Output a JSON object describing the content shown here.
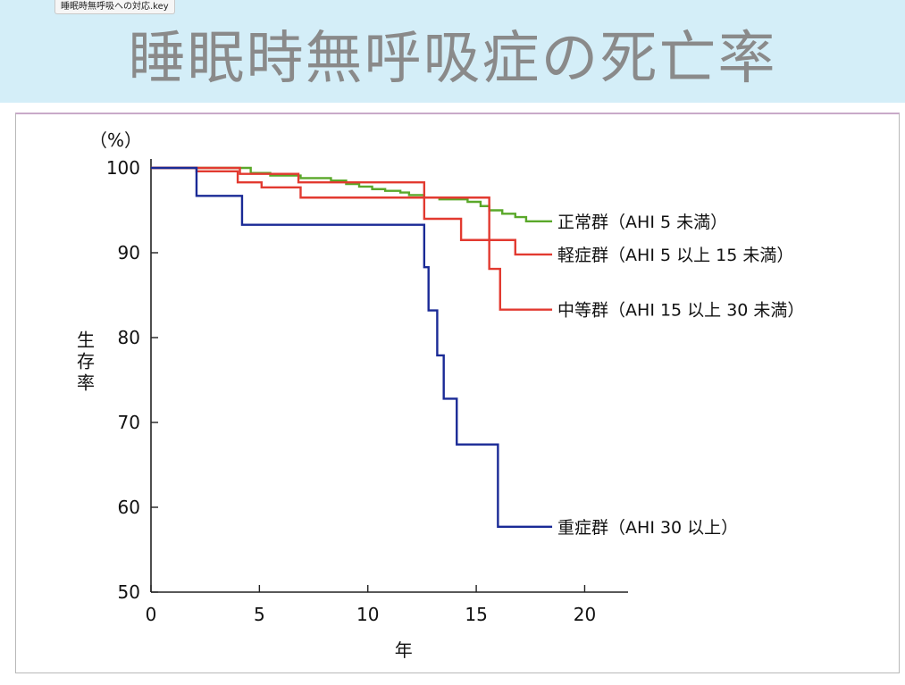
{
  "window": {
    "tab_title": "睡眠時無呼吸への対応.key"
  },
  "slide": {
    "title": "睡眠時無呼吸症の死亡率"
  },
  "chart_data": {
    "type": "line",
    "step": true,
    "title": "",
    "xlabel": "年",
    "ylabel": "生存率",
    "y_unit": "（%）",
    "xlim": [
      0,
      22
    ],
    "ylim": [
      50,
      100
    ],
    "x_ticks": [
      0,
      5,
      10,
      15,
      20
    ],
    "y_ticks": [
      50,
      60,
      70,
      80,
      90,
      100
    ],
    "grid": false,
    "legend": "inline labels at right end of each series",
    "series": [
      {
        "name": "正常群（AHI 5 未満）",
        "color": "#5aa82a",
        "x": [
          0,
          4,
          4.6,
          5.5,
          6.9,
          8.3,
          9,
          9.6,
          10.2,
          10.8,
          11.5,
          11.9,
          12.6,
          13.3,
          14.6,
          15.2,
          15.6,
          16.2,
          16.8,
          17.3,
          18.5
        ],
        "y": [
          100,
          100,
          99.4,
          99.1,
          98.8,
          98.5,
          98.1,
          97.8,
          97.5,
          97.3,
          97.1,
          96.8,
          96.5,
          96.3,
          96.0,
          95.5,
          95.0,
          94.6,
          94.2,
          93.7,
          93.7
        ]
      },
      {
        "name": "軽症群（AHI 5 以上 15 未満）",
        "color": "#e23a30",
        "x": [
          0,
          2.2,
          4.1,
          6.8,
          12.6,
          14.3,
          15.7,
          16.2,
          16.8,
          18.5
        ],
        "y": [
          100,
          100,
          99.3,
          98.3,
          94.0,
          91.5,
          91.5,
          91.5,
          89.8,
          89.8
        ]
      },
      {
        "name": "中等群（AHI 15 以上 30 未満）",
        "color": "#e23a30",
        "x": [
          0,
          2.1,
          4.0,
          5.1,
          6.9,
          12.7,
          15.6,
          16.1,
          18.5
        ],
        "y": [
          100,
          99.6,
          98.3,
          97.7,
          96.5,
          96.5,
          88.1,
          83.3,
          83.3
        ]
      },
      {
        "name": "重症群（AHI 30 以上）",
        "color": "#1a2a96",
        "x": [
          0,
          2.1,
          4.2,
          12.6,
          12.8,
          13.2,
          13.5,
          14.1,
          16.0,
          18.5
        ],
        "y": [
          100,
          96.7,
          93.3,
          88.3,
          83.2,
          77.9,
          72.8,
          67.4,
          57.7,
          57.7
        ]
      }
    ]
  }
}
